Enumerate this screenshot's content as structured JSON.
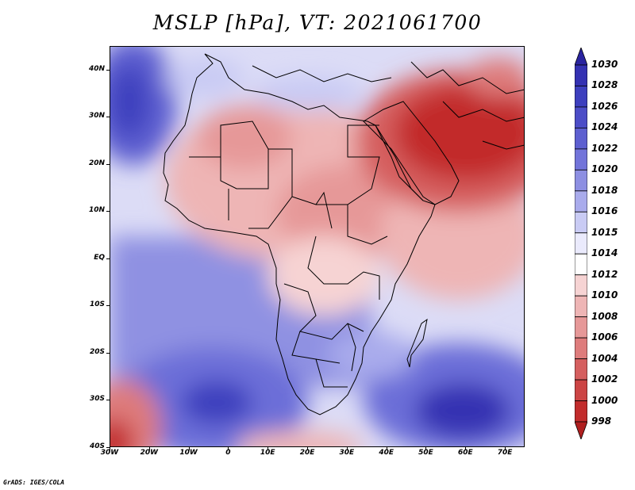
{
  "title": "MSLP [hPa], VT: 2021061700",
  "credit": "GrADS: IGES/COLA",
  "map": {
    "region": "Africa",
    "variable": "MSLP",
    "units": "hPa",
    "valid_time": "2021061700",
    "lat_labels": [
      "40N",
      "30N",
      "20N",
      "10N",
      "EQ",
      "10S",
      "20S",
      "30S",
      "40S"
    ],
    "lon_labels": [
      "30W",
      "20W",
      "10W",
      "0",
      "10E",
      "20E",
      "30E",
      "40E",
      "50E",
      "60E",
      "70E"
    ],
    "lon_range": [
      -30,
      75
    ],
    "lat_range": [
      -40,
      45
    ]
  },
  "colorbar": {
    "labels": [
      "1030",
      "1028",
      "1026",
      "1024",
      "1022",
      "1020",
      "1018",
      "1016",
      "1015",
      "1014",
      "1012",
      "1010",
      "1008",
      "1006",
      "1004",
      "1002",
      "1000",
      "998"
    ],
    "colors": [
      "#2a24a0",
      "#3431b2",
      "#3d3fbe",
      "#4c4dc7",
      "#5d5fd0",
      "#7274da",
      "#8d8fe2",
      "#a9abec",
      "#c9cbf4",
      "#eaeafc",
      "#ffffff",
      "#f6d3d3",
      "#eeb5b5",
      "#e69898",
      "#de7c7c",
      "#d55f5f",
      "#cc4444",
      "#c22c2c",
      "#b01f1f"
    ],
    "colors_order": "top-to-bottom"
  }
}
